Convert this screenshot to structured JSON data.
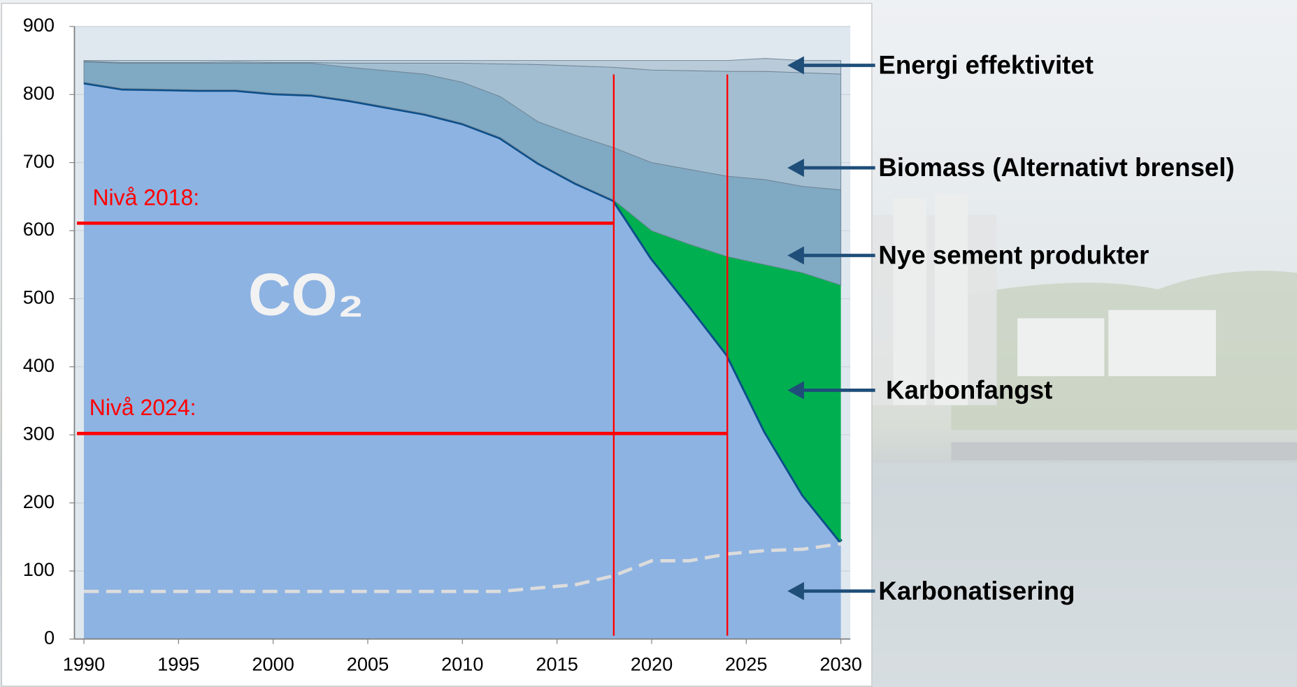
{
  "chart_data": {
    "type": "area",
    "stacked": true,
    "x": [
      1990,
      1992,
      1994,
      1996,
      1998,
      2000,
      2002,
      2004,
      2006,
      2008,
      2010,
      2012,
      2014,
      2016,
      2018,
      2020,
      2022,
      2024,
      2026,
      2028,
      2030
    ],
    "xlim": [
      1989.5,
      2030.5
    ],
    "xticks": [
      1990,
      1995,
      2000,
      2005,
      2010,
      2015,
      2020,
      2025,
      2030
    ],
    "ylim": [
      0,
      900
    ],
    "yticks": [
      0,
      100,
      200,
      300,
      400,
      500,
      600,
      700,
      800,
      900
    ],
    "grid": true,
    "series": [
      {
        "name": "CO₂",
        "color": "#8db3e2",
        "line_color": "#0b4f8a",
        "values": [
          818,
          809,
          808,
          807,
          807,
          802,
          800,
          792,
          782,
          772,
          758,
          737,
          700,
          670,
          645,
          560,
          490,
          418,
          305,
          212,
          143
        ]
      },
      {
        "name": "Karbonfangst",
        "color": "#00b050",
        "values": [
          0,
          0,
          0,
          0,
          0,
          0,
          0,
          0,
          0,
          0,
          0,
          0,
          0,
          0,
          0,
          40,
          90,
          144,
          245,
          326,
          377
        ]
      },
      {
        "name": "Nye sement produkter",
        "color": "#80a9c3",
        "values": [
          30,
          37,
          38,
          39,
          39,
          44,
          46,
          48,
          53,
          58,
          60,
          60,
          60,
          70,
          77,
          100,
          110,
          118,
          125,
          127,
          140
        ]
      },
      {
        "name": "Biomass (Alternativt brensel)",
        "color": "#a3bed1",
        "values": [
          1,
          1,
          1,
          1,
          2,
          1,
          1,
          6,
          11,
          16,
          28,
          48,
          84,
          102,
          118,
          136,
          145,
          154,
          159,
          167,
          170
        ]
      },
      {
        "name": "Energi effektivitet",
        "color": "#b9cad8",
        "values": [
          1,
          3,
          3,
          3,
          2,
          3,
          3,
          4,
          4,
          4,
          4,
          5,
          6,
          8,
          10,
          14,
          15,
          16,
          19,
          18,
          20
        ]
      },
      {
        "name": "Karbonatisering",
        "color": "#dcdcdc",
        "kind": "line",
        "dashed": true,
        "values": [
          70,
          70,
          70,
          70,
          70,
          70,
          70,
          70,
          70,
          70,
          70,
          70,
          75,
          80,
          93,
          115,
          115,
          125,
          130,
          132,
          140
        ]
      }
    ],
    "reference_lines": [
      {
        "label": "Nivå 2018:",
        "y": 611,
        "x": 2018,
        "color": "#ff0000"
      },
      {
        "label": "Nivå 2024:",
        "y": 302,
        "x": 2024,
        "color": "#ff0000"
      }
    ]
  }
}
